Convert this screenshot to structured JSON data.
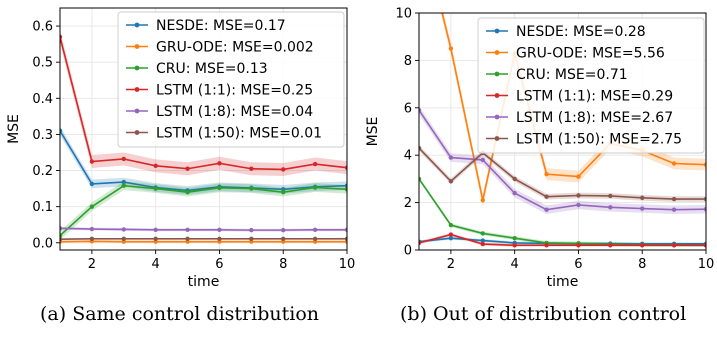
{
  "captions": {
    "a": "(a) Same control distribution",
    "b": "(b) Out of distribution control"
  },
  "colors": {
    "NESDE": "#1f77b4",
    "GRU-ODE": "#ff7f0e",
    "CRU": "#2ca02c",
    "LSTM (1:1)": "#d62728",
    "LSTM (1:8)": "#9467bd",
    "LSTM (1:50)": "#8c564b"
  },
  "chart_data": [
    {
      "type": "line",
      "xlabel": "time",
      "ylabel": "MSE",
      "xlim": [
        1,
        10
      ],
      "ylim": [
        -0.02,
        0.65
      ],
      "xticks": [
        "2",
        "4",
        "6",
        "8",
        "10"
      ],
      "yticks": [
        "0.0",
        "0.1",
        "0.2",
        "0.3",
        "0.4",
        "0.5",
        "0.6"
      ],
      "grid": true,
      "legend": "top-right",
      "x": [
        1,
        2,
        3,
        4,
        5,
        6,
        7,
        8,
        9,
        10
      ],
      "series": [
        {
          "name": "NESDE: MSE=0.17",
          "key": "NESDE",
          "values": [
            0.31,
            0.163,
            0.168,
            0.153,
            0.145,
            0.155,
            0.152,
            0.148,
            0.155,
            0.158
          ],
          "band": 0.012
        },
        {
          "name": "GRU-ODE: MSE=0.002",
          "key": "GRU-ODE",
          "values": [
            0.003,
            0.004,
            0.003,
            0.003,
            0.003,
            0.003,
            0.003,
            0.003,
            0.003,
            0.003
          ],
          "band": 0.003
        },
        {
          "name": "CRU: MSE=0.13",
          "key": "CRU",
          "values": [
            0.02,
            0.1,
            0.158,
            0.15,
            0.14,
            0.152,
            0.15,
            0.14,
            0.153,
            0.148
          ],
          "band": 0.012
        },
        {
          "name": "LSTM (1:1): MSE=0.25",
          "key": "LSTM (1:1)",
          "values": [
            0.57,
            0.225,
            0.232,
            0.213,
            0.205,
            0.22,
            0.205,
            0.203,
            0.218,
            0.208
          ],
          "band": 0.018
        },
        {
          "name": "LSTM (1:8): MSE=0.04",
          "key": "LSTM (1:8)",
          "values": [
            0.04,
            0.038,
            0.037,
            0.036,
            0.036,
            0.036,
            0.035,
            0.035,
            0.036,
            0.036
          ],
          "band": 0.004
        },
        {
          "name": "LSTM (1:50): MSE=0.01",
          "key": "LSTM (1:50)",
          "values": [
            0.01,
            0.011,
            0.011,
            0.011,
            0.011,
            0.011,
            0.011,
            0.011,
            0.011,
            0.011
          ],
          "band": 0.002
        }
      ]
    },
    {
      "type": "line",
      "xlabel": "time",
      "ylabel": "MSE",
      "xlim": [
        1,
        10
      ],
      "ylim": [
        0,
        10
      ],
      "xticks": [
        "2",
        "4",
        "6",
        "8",
        "10"
      ],
      "yticks": [
        "0",
        "2",
        "4",
        "6",
        "8",
        "10"
      ],
      "grid": true,
      "legend": "top-right",
      "x": [
        1,
        2,
        3,
        4,
        5,
        6,
        7,
        8,
        9,
        10
      ],
      "series": [
        {
          "name": "NESDE: MSE=0.28",
          "key": "NESDE",
          "values": [
            0.35,
            0.5,
            0.4,
            0.3,
            0.28,
            0.27,
            0.27,
            0.26,
            0.26,
            0.26
          ],
          "band": 0.06
        },
        {
          "name": "GRU-ODE: MSE=5.56",
          "key": "GRU-ODE",
          "values": [
            14.0,
            8.5,
            2.1,
            8.3,
            3.2,
            3.1,
            4.5,
            4.2,
            3.65,
            3.6
          ],
          "band": 0.25
        },
        {
          "name": "CRU: MSE=0.71",
          "key": "CRU",
          "values": [
            3.0,
            1.05,
            0.7,
            0.5,
            0.3,
            0.28,
            0.24,
            0.22,
            0.21,
            0.2
          ],
          "band": 0.08
        },
        {
          "name": "LSTM (1:1): MSE=0.29",
          "key": "LSTM (1:1)",
          "values": [
            0.3,
            0.65,
            0.25,
            0.2,
            0.2,
            0.2,
            0.2,
            0.2,
            0.2,
            0.2
          ],
          "band": 0.06
        },
        {
          "name": "LSTM (1:8): MSE=2.67",
          "key": "LSTM (1:8)",
          "values": [
            5.9,
            3.9,
            3.8,
            2.4,
            1.7,
            1.9,
            1.8,
            1.75,
            1.7,
            1.72
          ],
          "band": 0.18
        },
        {
          "name": "LSTM (1:50): MSE=2.75",
          "key": "LSTM (1:50)",
          "values": [
            4.3,
            2.9,
            4.1,
            3.0,
            2.25,
            2.3,
            2.28,
            2.2,
            2.15,
            2.15
          ],
          "band": 0.12
        }
      ]
    }
  ]
}
